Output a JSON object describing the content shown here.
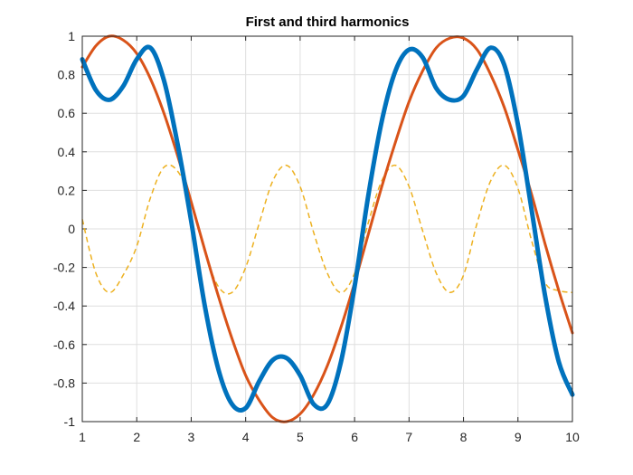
{
  "chart_data": {
    "type": "line",
    "title": "First and third harmonics",
    "xlabel": "",
    "ylabel": "",
    "xlim": [
      1,
      10
    ],
    "ylim": [
      -1,
      1
    ],
    "xticks": [
      1,
      2,
      3,
      4,
      5,
      6,
      7,
      8,
      9,
      10
    ],
    "yticks": [
      -1,
      -0.8,
      -0.6,
      -0.4,
      -0.2,
      0,
      0.2,
      0.4,
      0.6,
      0.8,
      1
    ],
    "ytick_labels": [
      "-1",
      "-0.8",
      "-0.6",
      "-0.4",
      "-0.2",
      "0",
      "0.2",
      "0.4",
      "0.6",
      "0.8",
      "1"
    ],
    "grid": true,
    "x": [
      1,
      1.25,
      1.5,
      1.75,
      2,
      2.25,
      2.5,
      2.75,
      3,
      3.25,
      3.5,
      3.75,
      4,
      4.25,
      4.5,
      4.75,
      5,
      5.25,
      5.5,
      5.75,
      6,
      6.25,
      6.5,
      6.75,
      7,
      7.25,
      7.5,
      7.75,
      8,
      8.25,
      8.5,
      8.75,
      9,
      9.25,
      9.5,
      9.75,
      10
    ],
    "series": [
      {
        "color": "#0072BD",
        "line_style": "solid",
        "line_width": 5,
        "values": [
          0.88,
          0.72,
          0.67,
          0.74,
          0.88,
          0.94,
          0.77,
          0.44,
          0.04,
          -0.4,
          -0.73,
          -0.91,
          -0.93,
          -0.79,
          -0.68,
          -0.67,
          -0.76,
          -0.91,
          -0.91,
          -0.69,
          -0.3,
          0.17,
          0.56,
          0.82,
          0.93,
          0.89,
          0.73,
          0.67,
          0.69,
          0.83,
          0.94,
          0.85,
          0.54,
          0.1,
          -0.35,
          -0.69,
          -0.86
        ]
      },
      {
        "color": "#D95319",
        "line_style": "solid",
        "line_width": 3,
        "values": [
          0.84,
          0.95,
          1.0,
          0.98,
          0.91,
          0.78,
          0.6,
          0.38,
          0.14,
          -0.11,
          -0.35,
          -0.57,
          -0.76,
          -0.89,
          -0.98,
          -1.0,
          -0.96,
          -0.86,
          -0.71,
          -0.51,
          -0.28,
          -0.03,
          0.22,
          0.45,
          0.66,
          0.82,
          0.94,
          0.99,
          0.99,
          0.93,
          0.8,
          0.63,
          0.41,
          0.18,
          -0.08,
          -0.32,
          -0.54
        ]
      },
      {
        "color": "#EDB120",
        "line_style": "dashed",
        "line_width": 1.5,
        "values": [
          0.05,
          -0.23,
          -0.33,
          -0.24,
          -0.09,
          0.16,
          0.32,
          0.3,
          0.14,
          -0.12,
          -0.3,
          -0.33,
          -0.2,
          0.03,
          0.25,
          0.33,
          0.22,
          -0.02,
          -0.23,
          -0.33,
          -0.23,
          0.03,
          0.25,
          0.33,
          0.22,
          -0.01,
          -0.23,
          -0.33,
          -0.24,
          0.03,
          0.25,
          0.33,
          0.21,
          -0.06,
          -0.28,
          -0.32,
          -0.33
        ]
      }
    ]
  }
}
